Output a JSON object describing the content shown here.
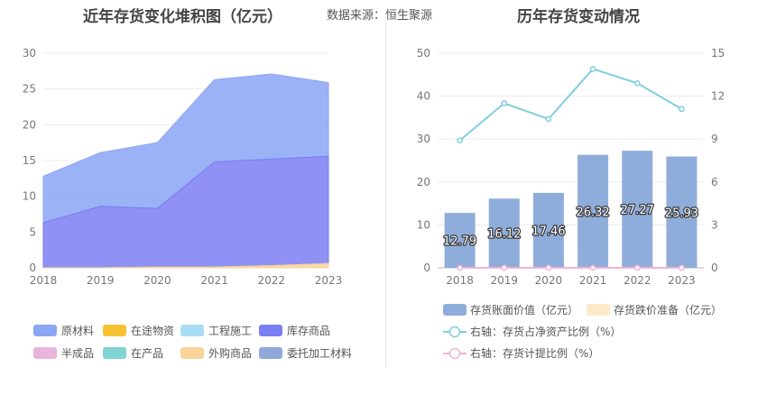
{
  "left": {
    "title": "近年存货变化堆积图（亿元）",
    "source_label": "数据来源：",
    "source_name": "恒生聚源"
  },
  "right": {
    "title": "历年存货变动情况"
  },
  "colors": {
    "raw_material": "#8aa6f5",
    "in_transit": "#f7c232",
    "construction": "#a9dcf5",
    "finished_goods": "#7b7ef2",
    "semi_finished": "#e9b5da",
    "in_production": "#7fd3d3",
    "purchased_goods": "#f9d49a",
    "consigned": "#8fa9d8",
    "bar_value": "#8fadda",
    "bar_reserve": "#fde8c8",
    "line_ratio": "#7fcfdc",
    "line_provision": "#f0b3d6"
  },
  "chart_data": [
    {
      "type": "area",
      "stacked": true,
      "x": [
        "2018",
        "2019",
        "2020",
        "2021",
        "2022",
        "2023"
      ],
      "ylim": [
        0,
        30
      ],
      "yticks": [
        0,
        5,
        10,
        15,
        20,
        25,
        30
      ],
      "grid": true,
      "legend_position": "bottom",
      "series": [
        {
          "name": "原材料",
          "key": "raw_material",
          "values": [
            6.5,
            7.5,
            9.2,
            11.5,
            11.9,
            10.3
          ]
        },
        {
          "name": "在途物资",
          "key": "in_transit",
          "values": [
            0,
            0,
            0,
            0,
            0,
            0
          ]
        },
        {
          "name": "工程施工",
          "key": "construction",
          "values": [
            0,
            0,
            0,
            0,
            0,
            0
          ]
        },
        {
          "name": "库存商品",
          "key": "finished_goods",
          "values": [
            6.3,
            8.6,
            8.2,
            14.7,
            14.9,
            15.0
          ]
        },
        {
          "name": "半成品",
          "key": "semi_finished",
          "values": [
            0,
            0,
            0,
            0,
            0,
            0
          ]
        },
        {
          "name": "在产品",
          "key": "in_production",
          "values": [
            0,
            0,
            0,
            0,
            0,
            0
          ]
        },
        {
          "name": "外购商品",
          "key": "purchased_goods",
          "values": [
            0,
            0,
            0.1,
            0.1,
            0.3,
            0.6
          ]
        },
        {
          "name": "委托加工材料",
          "key": "consigned",
          "values": [
            0,
            0,
            0,
            0,
            0,
            0
          ]
        }
      ]
    },
    {
      "type": "bar",
      "categories": [
        "2018",
        "2019",
        "2020",
        "2021",
        "2022",
        "2023"
      ],
      "ylim_left": [
        0,
        50
      ],
      "yticks_left": [
        0,
        10,
        20,
        30,
        40,
        50
      ],
      "ylim_right": [
        0,
        15
      ],
      "yticks_right": [
        0,
        3,
        6,
        9,
        12,
        15
      ],
      "legend_position": "bottom",
      "bars": [
        {
          "name": "存货账面价值（亿元）",
          "key": "bar_value",
          "values": [
            12.79,
            16.12,
            17.46,
            26.32,
            27.27,
            25.93
          ],
          "labels": [
            "12.79",
            "16.12",
            "17.46",
            "26.32",
            "27.27",
            "25.93"
          ]
        },
        {
          "name": "存货跌价准备（亿元）",
          "key": "bar_reserve",
          "values": [
            0,
            0,
            0,
            0,
            0,
            0
          ]
        }
      ],
      "lines": [
        {
          "name": "右轴：存货占净资产比例（%）",
          "key": "line_ratio",
          "axis": "right",
          "values": [
            8.9,
            11.5,
            10.4,
            13.9,
            12.9,
            11.1
          ]
        },
        {
          "name": "右轴：存货计提比例（%）",
          "key": "line_provision",
          "axis": "right",
          "values": [
            0,
            0,
            0,
            0,
            0,
            0
          ]
        }
      ]
    }
  ]
}
